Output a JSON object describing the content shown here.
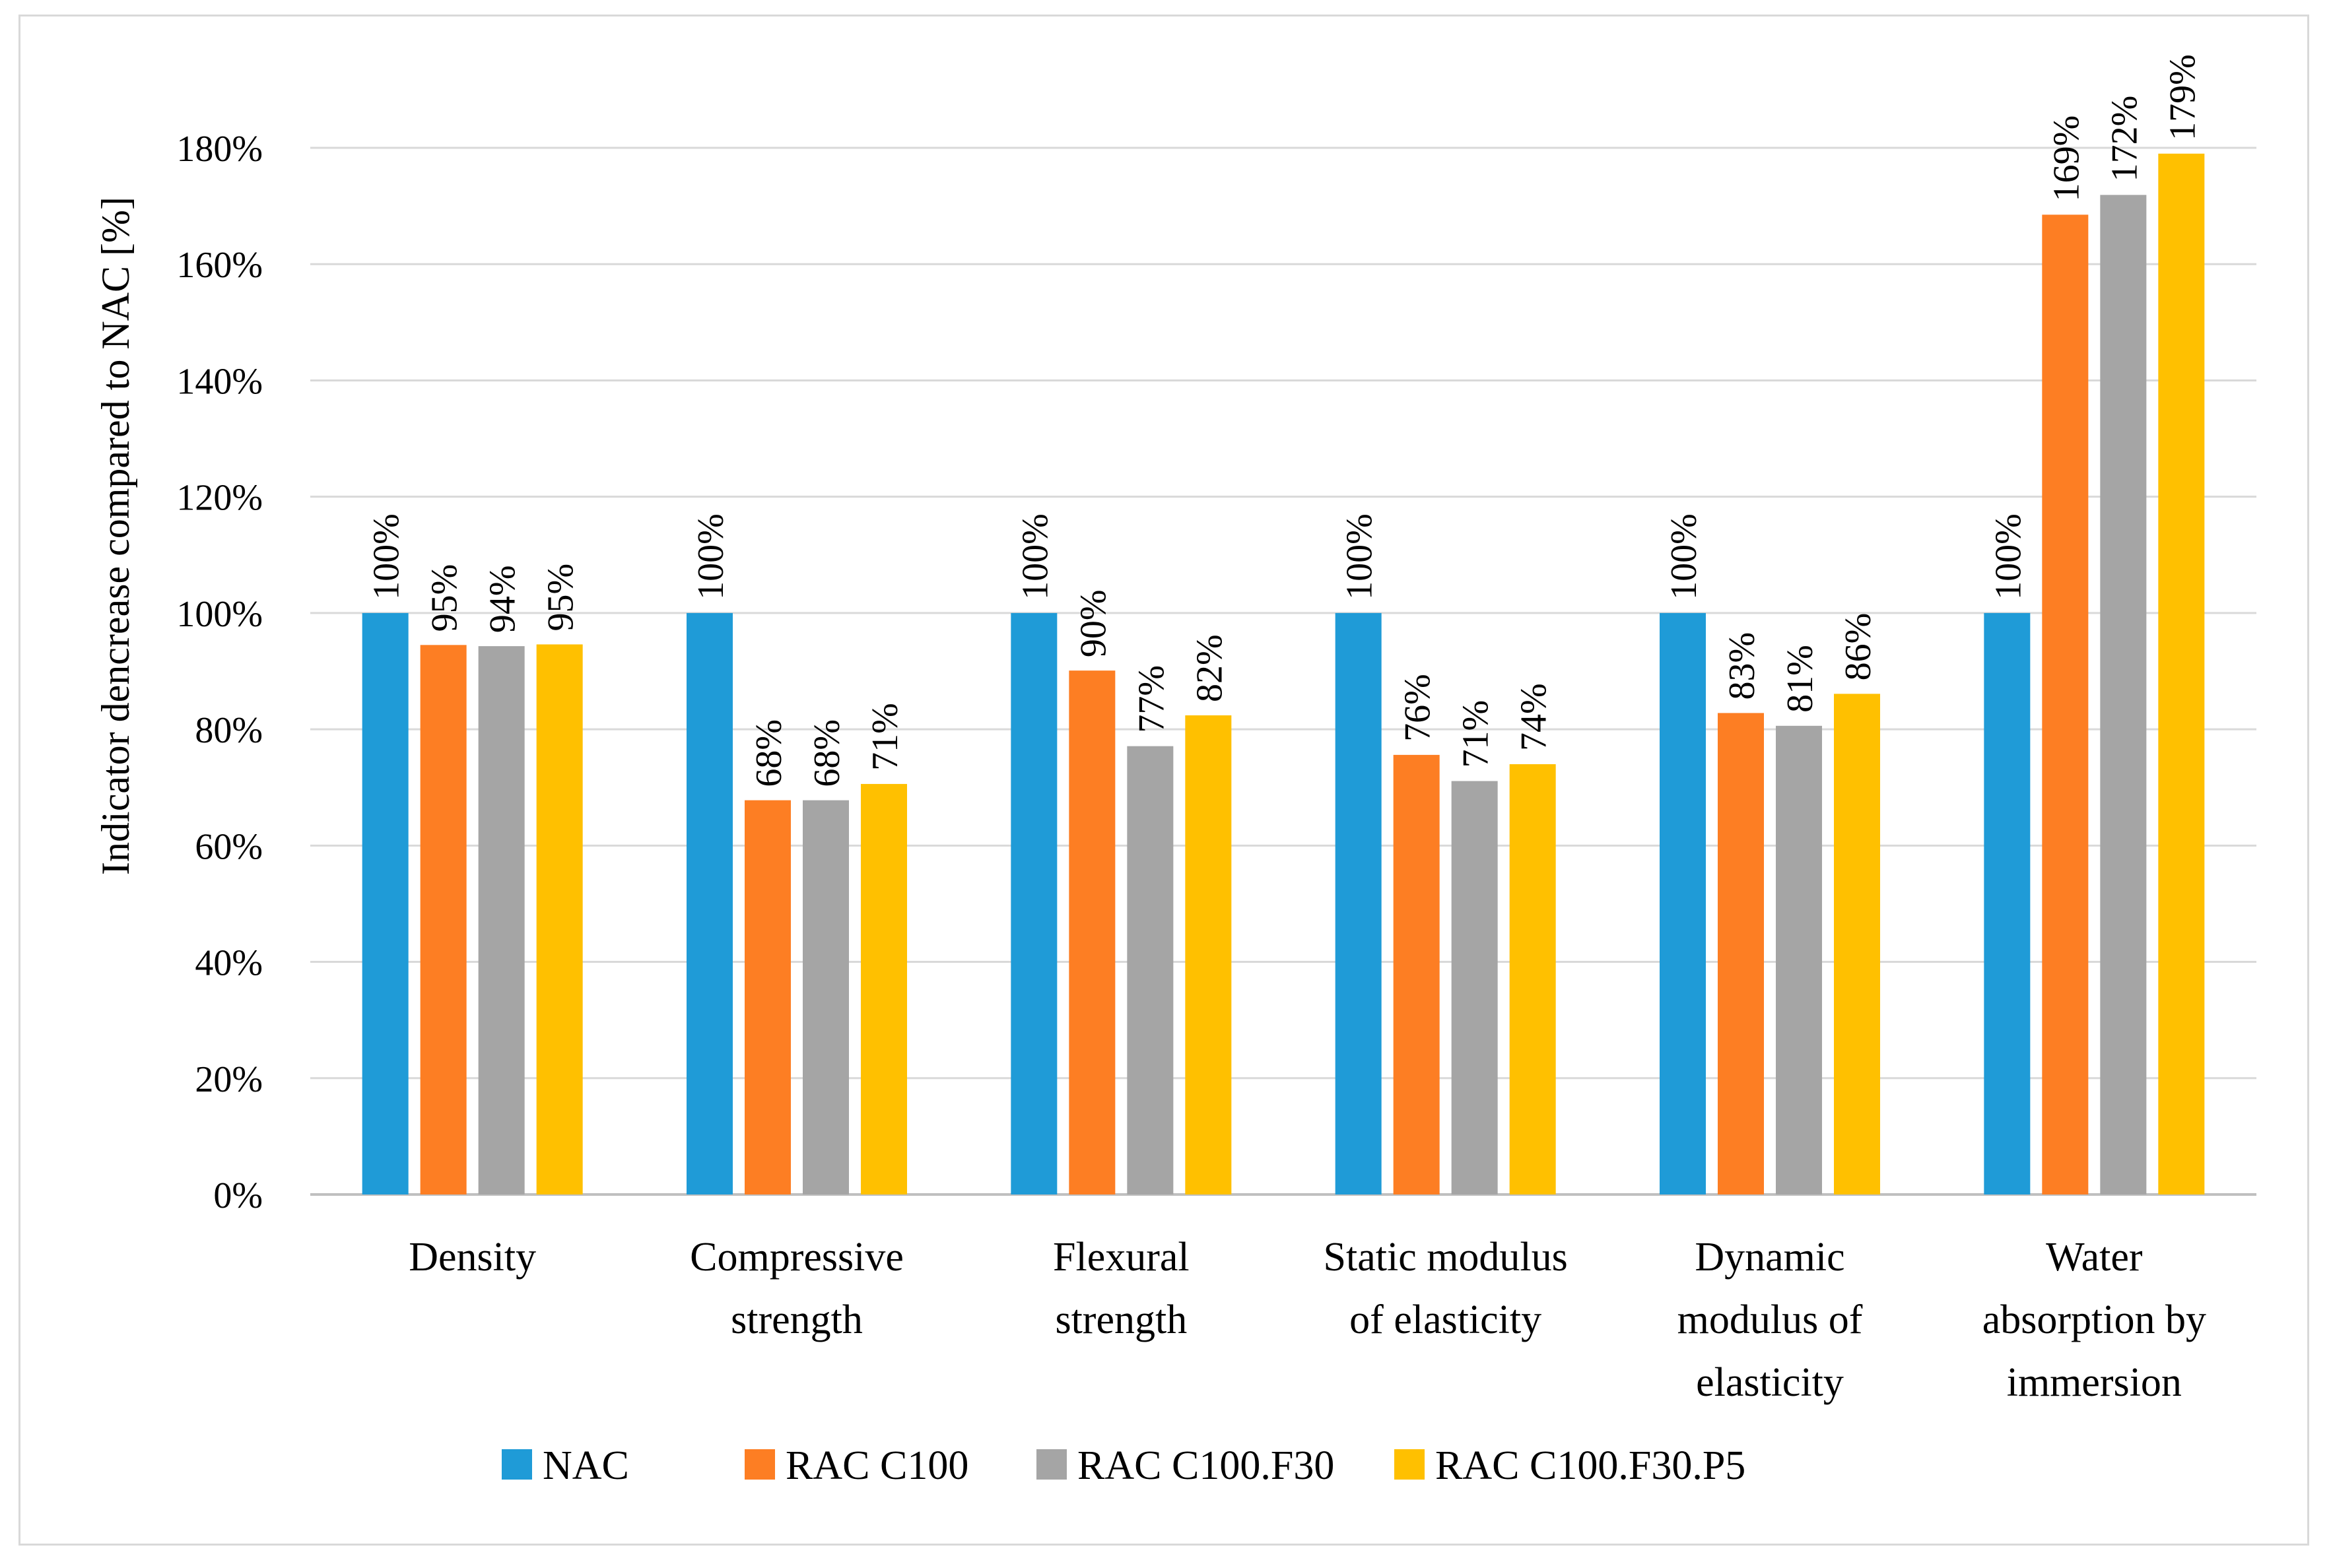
{
  "chart_data": {
    "type": "bar",
    "title": "",
    "xlabel": "",
    "ylabel": "Indicator dencrease compared to NAC [%]",
    "ylim": [
      0,
      180
    ],
    "ytick_step": 20,
    "yticks": [
      "0%",
      "20%",
      "40%",
      "60%",
      "80%",
      "100%",
      "120%",
      "140%",
      "160%",
      "180%"
    ],
    "grid": true,
    "legend_position": "bottom",
    "categories": [
      [
        "Density"
      ],
      [
        "Compressive",
        "strength"
      ],
      [
        "Flexural",
        "strength"
      ],
      [
        "Static modulus",
        "of elasticity"
      ],
      [
        "Dynamic",
        "modulus of",
        "elasticity"
      ],
      [
        "Water",
        "absorption by",
        "immersion"
      ]
    ],
    "series": [
      {
        "name": "NAC",
        "color": "#1f9bd7",
        "values": [
          100,
          100,
          100,
          100,
          100,
          100
        ],
        "labels": [
          "100%",
          "100%",
          "100%",
          "100%",
          "100%",
          "100%"
        ]
      },
      {
        "name": "RAC C100",
        "color": "#fd7e23",
        "values": [
          94.5,
          67.8,
          90.1,
          75.6,
          82.8,
          168.5
        ],
        "labels": [
          "95%",
          "68%",
          "90%",
          "76%",
          "83%",
          "169%"
        ]
      },
      {
        "name": "RAC C100.F30",
        "color": "#a5a5a5",
        "values": [
          94.3,
          67.8,
          77.1,
          71.1,
          80.6,
          171.9
        ],
        "labels": [
          "94%",
          "68%",
          "77%",
          "71%",
          "81%",
          "172%"
        ]
      },
      {
        "name": "RAC C100.F30.P5",
        "color": "#ffc000",
        "values": [
          94.6,
          70.6,
          82.4,
          74.0,
          86.1,
          179.0
        ],
        "labels": [
          "95%",
          "71%",
          "82%",
          "74%",
          "86%",
          "179%"
        ]
      }
    ]
  }
}
